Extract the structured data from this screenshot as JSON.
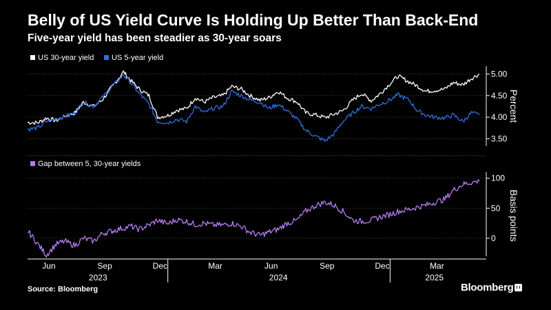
{
  "title": "Belly of US Yield Curve Is Holding Up Better Than Back-End",
  "subtitle": "Five-year yield has been steadier as 30-year soars",
  "source": "Source: Bloomberg",
  "brand": "Bloomberg",
  "colors": {
    "background": "#000000",
    "y30": "#ffffff",
    "y5": "#2f6fe0",
    "gap": "#b47cf0",
    "grid": "#555555"
  },
  "chart_data": [
    {
      "type": "line",
      "title": "",
      "ylabel": "Percent",
      "ylim": [
        3.3,
        5.15
      ],
      "yticks": [
        "5.00",
        "4.50",
        "4.00",
        "3.50"
      ],
      "x": [
        "2023-05-15",
        "2023-06-01",
        "2023-06-15",
        "2023-07-01",
        "2023-07-15",
        "2023-08-01",
        "2023-08-15",
        "2023-09-01",
        "2023-09-15",
        "2023-10-01",
        "2023-10-20",
        "2023-11-01",
        "2023-11-15",
        "2023-12-01",
        "2023-12-15",
        "2024-01-01",
        "2024-01-15",
        "2024-02-01",
        "2024-02-15",
        "2024-03-01",
        "2024-03-15",
        "2024-04-01",
        "2024-04-15",
        "2024-05-01",
        "2024-05-15",
        "2024-06-01",
        "2024-06-15",
        "2024-07-01",
        "2024-07-15",
        "2024-08-01",
        "2024-08-15",
        "2024-09-01",
        "2024-09-16",
        "2024-10-01",
        "2024-10-15",
        "2024-11-01",
        "2024-11-15",
        "2024-12-01",
        "2024-12-15",
        "2025-01-01",
        "2025-01-14",
        "2025-02-01",
        "2025-02-15",
        "2025-03-01",
        "2025-03-15",
        "2025-04-01",
        "2025-04-15",
        "2025-05-01",
        "2025-05-15",
        "2025-05-28"
      ],
      "legend": [
        {
          "name": "US 30-year yield",
          "color": "#ffffff"
        },
        {
          "name": "US 5-year yield",
          "color": "#2f6fe0"
        }
      ],
      "series": [
        {
          "name": "US 30-year yield",
          "color": "#ffffff",
          "values": [
            3.88,
            3.87,
            3.98,
            3.92,
            4.02,
            4.1,
            4.35,
            4.25,
            4.4,
            4.7,
            5.05,
            4.85,
            4.65,
            4.5,
            4.0,
            4.04,
            4.16,
            4.2,
            4.45,
            4.35,
            4.45,
            4.5,
            4.71,
            4.65,
            4.5,
            4.39,
            4.45,
            4.6,
            4.45,
            4.35,
            4.1,
            4.05,
            3.99,
            4.07,
            4.15,
            4.4,
            4.55,
            4.38,
            4.54,
            4.78,
            4.95,
            4.82,
            4.72,
            4.6,
            4.62,
            4.65,
            4.8,
            4.75,
            4.9,
            5.0
          ]
        },
        {
          "name": "US 5-year yield",
          "color": "#2f6fe0",
          "values": [
            3.72,
            3.75,
            3.9,
            3.95,
            4.02,
            4.1,
            4.35,
            4.25,
            4.45,
            4.7,
            4.98,
            4.8,
            4.55,
            4.3,
            3.9,
            3.87,
            3.95,
            3.9,
            4.25,
            4.1,
            4.2,
            4.25,
            4.6,
            4.5,
            4.4,
            4.35,
            4.2,
            4.3,
            4.15,
            3.95,
            3.7,
            3.55,
            3.45,
            3.62,
            3.9,
            4.1,
            4.25,
            4.2,
            4.3,
            4.4,
            4.52,
            4.4,
            4.15,
            4.05,
            4.0,
            3.98,
            4.05,
            3.9,
            4.1,
            4.05
          ]
        }
      ]
    },
    {
      "type": "line",
      "title": "",
      "ylabel": "Basis points",
      "ylim": [
        -30,
        110
      ],
      "yticks": [
        "100",
        "50",
        "0"
      ],
      "legend": [
        {
          "name": "Gap between 5, 30-year yields",
          "color": "#b47cf0"
        }
      ],
      "x": [
        "2023-05-15",
        "2023-05-25",
        "2023-06-05",
        "2023-06-15",
        "2023-07-01",
        "2023-07-15",
        "2023-08-01",
        "2023-08-15",
        "2023-09-01",
        "2023-09-15",
        "2023-10-01",
        "2023-10-15",
        "2023-11-01",
        "2023-11-15",
        "2023-12-01",
        "2023-12-15",
        "2024-01-01",
        "2024-01-15",
        "2024-02-01",
        "2024-02-15",
        "2024-03-01",
        "2024-03-15",
        "2024-04-01",
        "2024-04-15",
        "2024-05-01",
        "2024-05-15",
        "2024-06-01",
        "2024-06-15",
        "2024-07-01",
        "2024-07-15",
        "2024-08-01",
        "2024-08-15",
        "2024-09-01",
        "2024-09-16",
        "2024-10-01",
        "2024-10-15",
        "2024-11-01",
        "2024-11-15",
        "2024-12-01",
        "2024-12-15",
        "2025-01-01",
        "2025-01-15",
        "2025-02-01",
        "2025-02-15",
        "2025-03-01",
        "2025-03-15",
        "2025-04-01",
        "2025-04-15",
        "2025-05-01",
        "2025-05-15",
        "2025-05-28"
      ],
      "series": [
        {
          "name": "Gap between 5, 30-year yields",
          "color": "#b47cf0",
          "values": [
            12,
            0,
            -15,
            -28,
            -10,
            -5,
            -12,
            0,
            -5,
            8,
            12,
            16,
            20,
            15,
            22,
            30,
            24,
            31,
            28,
            23,
            25,
            22,
            22,
            25,
            20,
            10,
            5,
            10,
            15,
            25,
            30,
            45,
            55,
            60,
            55,
            45,
            30,
            28,
            30,
            35,
            40,
            45,
            48,
            52,
            55,
            60,
            65,
            80,
            90,
            93,
            95
          ]
        }
      ]
    }
  ],
  "x_axis": {
    "months": [
      "Jun",
      "Sep",
      "Dec",
      "Mar",
      "Jun",
      "Sep",
      "Dec",
      "Mar"
    ],
    "years": [
      "2023",
      "2024",
      "2025"
    ]
  }
}
